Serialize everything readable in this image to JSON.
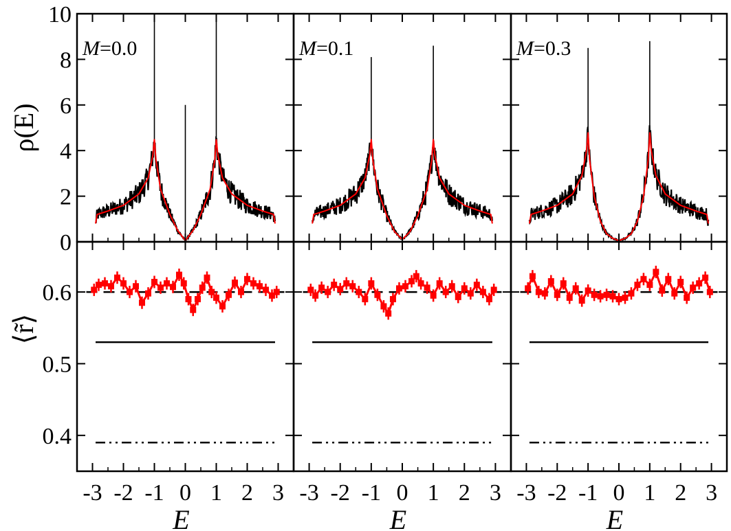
{
  "chart_data": {
    "type": "line",
    "layout": "3 columns x 2 rows of panels sharing axes",
    "colors": {
      "histogram": "#000000",
      "fit": "#ff0000",
      "r_data": "#ff0000",
      "reference_lines": "#000000"
    },
    "x_axis": {
      "label": "E",
      "range": [
        -3.5,
        3.5
      ],
      "ticks": [
        -3,
        -2,
        -1,
        0,
        1,
        2,
        3
      ],
      "tick_labels": [
        "-3",
        "-2",
        "-1",
        "0",
        "1",
        "2",
        "3"
      ]
    },
    "top_row": {
      "ylabel": "ρ(E)",
      "ylim": [
        0,
        10
      ],
      "yticks": [
        0,
        2,
        4,
        6,
        8,
        10
      ],
      "ytick_labels": [
        "0",
        "2",
        "4",
        "6",
        "8",
        "10"
      ]
    },
    "bottom_row": {
      "ylabel": "⟨r̃⟩",
      "ylim": [
        0.35,
        0.67
      ],
      "yticks": [
        0.4,
        0.5,
        0.6
      ],
      "ytick_labels": [
        "0.4",
        "0.5",
        "0.6"
      ],
      "reference_lines": [
        {
          "style": "dashed",
          "y": 0.6,
          "x": [
            -3.2,
            3.2
          ]
        },
        {
          "style": "solid",
          "y": 0.53,
          "x": [
            -2.9,
            2.9
          ]
        },
        {
          "style": "dash-dot-dot",
          "y": 0.39,
          "x": [
            -2.9,
            2.9
          ]
        }
      ]
    },
    "panels": [
      {
        "label_var": "M",
        "label_val": "=0.0",
        "density_peaks": [
          {
            "x": -1.0,
            "y": 10.0
          },
          {
            "x": 0.0,
            "y": 6.0
          },
          {
            "x": 1.0,
            "y": 9.7
          }
        ],
        "density_fit_points": [
          {
            "x": -2.9,
            "y": 0.8
          },
          {
            "x": -2.85,
            "y": 1.2
          },
          {
            "x": -2.5,
            "y": 1.35
          },
          {
            "x": -2.0,
            "y": 1.6
          },
          {
            "x": -1.5,
            "y": 2.1
          },
          {
            "x": -1.2,
            "y": 2.8
          },
          {
            "x": -1.05,
            "y": 3.8
          },
          {
            "x": -1.0,
            "y": 4.5
          },
          {
            "x": -0.95,
            "y": 3.6
          },
          {
            "x": -0.8,
            "y": 2.3
          },
          {
            "x": -0.5,
            "y": 1.2
          },
          {
            "x": -0.25,
            "y": 0.5
          },
          {
            "x": 0.0,
            "y": 0.05
          },
          {
            "x": 0.25,
            "y": 0.5
          },
          {
            "x": 0.5,
            "y": 1.2
          },
          {
            "x": 0.8,
            "y": 2.3
          },
          {
            "x": 0.95,
            "y": 3.6
          },
          {
            "x": 1.0,
            "y": 4.5
          },
          {
            "x": 1.05,
            "y": 3.8
          },
          {
            "x": 1.2,
            "y": 2.8
          },
          {
            "x": 1.5,
            "y": 2.1
          },
          {
            "x": 2.0,
            "y": 1.6
          },
          {
            "x": 2.5,
            "y": 1.35
          },
          {
            "x": 2.85,
            "y": 1.2
          },
          {
            "x": 2.9,
            "y": 0.8
          }
        ],
        "r_points": [
          {
            "x": -2.95,
            "y": 0.603
          },
          {
            "x": -2.8,
            "y": 0.61
          },
          {
            "x": -2.6,
            "y": 0.612
          },
          {
            "x": -2.4,
            "y": 0.608
          },
          {
            "x": -2.2,
            "y": 0.62
          },
          {
            "x": -2.0,
            "y": 0.612
          },
          {
            "x": -1.8,
            "y": 0.6
          },
          {
            "x": -1.6,
            "y": 0.608
          },
          {
            "x": -1.4,
            "y": 0.585
          },
          {
            "x": -1.2,
            "y": 0.598
          },
          {
            "x": -1.0,
            "y": 0.614
          },
          {
            "x": -0.8,
            "y": 0.606
          },
          {
            "x": -0.6,
            "y": 0.612
          },
          {
            "x": -0.4,
            "y": 0.607
          },
          {
            "x": -0.2,
            "y": 0.624
          },
          {
            "x": -0.05,
            "y": 0.612
          },
          {
            "x": 0.1,
            "y": 0.59
          },
          {
            "x": 0.25,
            "y": 0.575
          },
          {
            "x": 0.4,
            "y": 0.59
          },
          {
            "x": 0.55,
            "y": 0.606
          },
          {
            "x": 0.7,
            "y": 0.62
          },
          {
            "x": 0.85,
            "y": 0.6
          },
          {
            "x": 1.0,
            "y": 0.592
          },
          {
            "x": 1.2,
            "y": 0.58
          },
          {
            "x": 1.4,
            "y": 0.596
          },
          {
            "x": 1.6,
            "y": 0.613
          },
          {
            "x": 1.8,
            "y": 0.6
          },
          {
            "x": 2.0,
            "y": 0.618
          },
          {
            "x": 2.2,
            "y": 0.612
          },
          {
            "x": 2.4,
            "y": 0.608
          },
          {
            "x": 2.6,
            "y": 0.603
          },
          {
            "x": 2.8,
            "y": 0.595
          },
          {
            "x": 2.95,
            "y": 0.6
          }
        ]
      },
      {
        "label_var": "M",
        "label_val": "=0.1",
        "density_peaks": [
          {
            "x": -1.0,
            "y": 8.1
          },
          {
            "x": 1.0,
            "y": 8.6
          }
        ],
        "density_fit_points": [
          {
            "x": -2.9,
            "y": 0.8
          },
          {
            "x": -2.85,
            "y": 1.2
          },
          {
            "x": -2.5,
            "y": 1.35
          },
          {
            "x": -2.0,
            "y": 1.6
          },
          {
            "x": -1.5,
            "y": 2.1
          },
          {
            "x": -1.2,
            "y": 2.8
          },
          {
            "x": -1.05,
            "y": 3.8
          },
          {
            "x": -1.0,
            "y": 4.5
          },
          {
            "x": -0.95,
            "y": 3.6
          },
          {
            "x": -0.8,
            "y": 2.3
          },
          {
            "x": -0.5,
            "y": 1.15
          },
          {
            "x": -0.25,
            "y": 0.45
          },
          {
            "x": 0.0,
            "y": 0.1
          },
          {
            "x": 0.25,
            "y": 0.45
          },
          {
            "x": 0.5,
            "y": 1.15
          },
          {
            "x": 0.8,
            "y": 2.3
          },
          {
            "x": 0.95,
            "y": 3.6
          },
          {
            "x": 1.0,
            "y": 4.5
          },
          {
            "x": 1.05,
            "y": 3.8
          },
          {
            "x": 1.2,
            "y": 2.8
          },
          {
            "x": 1.5,
            "y": 2.1
          },
          {
            "x": 2.0,
            "y": 1.6
          },
          {
            "x": 2.5,
            "y": 1.35
          },
          {
            "x": 2.85,
            "y": 1.2
          },
          {
            "x": 2.9,
            "y": 0.8
          }
        ],
        "r_points": [
          {
            "x": -2.95,
            "y": 0.603
          },
          {
            "x": -2.8,
            "y": 0.595
          },
          {
            "x": -2.6,
            "y": 0.606
          },
          {
            "x": -2.4,
            "y": 0.6
          },
          {
            "x": -2.2,
            "y": 0.61
          },
          {
            "x": -2.0,
            "y": 0.604
          },
          {
            "x": -1.8,
            "y": 0.612
          },
          {
            "x": -1.6,
            "y": 0.608
          },
          {
            "x": -1.4,
            "y": 0.6
          },
          {
            "x": -1.2,
            "y": 0.59
          },
          {
            "x": -1.0,
            "y": 0.612
          },
          {
            "x": -0.8,
            "y": 0.596
          },
          {
            "x": -0.6,
            "y": 0.58
          },
          {
            "x": -0.45,
            "y": 0.57
          },
          {
            "x": -0.3,
            "y": 0.59
          },
          {
            "x": -0.1,
            "y": 0.605
          },
          {
            "x": 0.1,
            "y": 0.608
          },
          {
            "x": 0.3,
            "y": 0.615
          },
          {
            "x": 0.45,
            "y": 0.622
          },
          {
            "x": 0.6,
            "y": 0.612
          },
          {
            "x": 0.8,
            "y": 0.606
          },
          {
            "x": 1.0,
            "y": 0.595
          },
          {
            "x": 1.2,
            "y": 0.612
          },
          {
            "x": 1.4,
            "y": 0.6
          },
          {
            "x": 1.6,
            "y": 0.608
          },
          {
            "x": 1.8,
            "y": 0.593
          },
          {
            "x": 2.0,
            "y": 0.605
          },
          {
            "x": 2.2,
            "y": 0.598
          },
          {
            "x": 2.4,
            "y": 0.61
          },
          {
            "x": 2.6,
            "y": 0.6
          },
          {
            "x": 2.8,
            "y": 0.59
          },
          {
            "x": 2.95,
            "y": 0.603
          }
        ]
      },
      {
        "label_var": "M",
        "label_val": "=0.3",
        "density_peaks": [
          {
            "x": -1.0,
            "y": 8.5
          },
          {
            "x": 1.0,
            "y": 8.8
          }
        ],
        "density_fit_points": [
          {
            "x": -2.9,
            "y": 0.8
          },
          {
            "x": -2.85,
            "y": 1.2
          },
          {
            "x": -2.5,
            "y": 1.35
          },
          {
            "x": -2.0,
            "y": 1.6
          },
          {
            "x": -1.5,
            "y": 2.1
          },
          {
            "x": -1.2,
            "y": 2.9
          },
          {
            "x": -1.05,
            "y": 4.0
          },
          {
            "x": -1.0,
            "y": 4.8
          },
          {
            "x": -0.95,
            "y": 3.6
          },
          {
            "x": -0.8,
            "y": 2.0
          },
          {
            "x": -0.6,
            "y": 0.9
          },
          {
            "x": -0.4,
            "y": 0.35
          },
          {
            "x": -0.2,
            "y": 0.15
          },
          {
            "x": 0.0,
            "y": 0.05
          },
          {
            "x": 0.2,
            "y": 0.15
          },
          {
            "x": 0.4,
            "y": 0.35
          },
          {
            "x": 0.6,
            "y": 0.9
          },
          {
            "x": 0.8,
            "y": 2.0
          },
          {
            "x": 0.95,
            "y": 3.6
          },
          {
            "x": 1.0,
            "y": 4.8
          },
          {
            "x": 1.05,
            "y": 4.0
          },
          {
            "x": 1.2,
            "y": 2.9
          },
          {
            "x": 1.5,
            "y": 2.1
          },
          {
            "x": 2.0,
            "y": 1.6
          },
          {
            "x": 2.5,
            "y": 1.35
          },
          {
            "x": 2.85,
            "y": 1.2
          },
          {
            "x": 2.9,
            "y": 0.8
          }
        ],
        "r_points": [
          {
            "x": -2.95,
            "y": 0.605
          },
          {
            "x": -2.8,
            "y": 0.622
          },
          {
            "x": -2.6,
            "y": 0.6
          },
          {
            "x": -2.4,
            "y": 0.598
          },
          {
            "x": -2.2,
            "y": 0.615
          },
          {
            "x": -2.0,
            "y": 0.596
          },
          {
            "x": -1.8,
            "y": 0.612
          },
          {
            "x": -1.6,
            "y": 0.592
          },
          {
            "x": -1.4,
            "y": 0.605
          },
          {
            "x": -1.2,
            "y": 0.588
          },
          {
            "x": -1.0,
            "y": 0.602
          },
          {
            "x": -0.8,
            "y": 0.596
          },
          {
            "x": -0.6,
            "y": 0.594
          },
          {
            "x": -0.4,
            "y": 0.596
          },
          {
            "x": -0.2,
            "y": 0.594
          },
          {
            "x": 0.0,
            "y": 0.59
          },
          {
            "x": 0.2,
            "y": 0.592
          },
          {
            "x": 0.4,
            "y": 0.598
          },
          {
            "x": 0.6,
            "y": 0.61
          },
          {
            "x": 0.8,
            "y": 0.618
          },
          {
            "x": 1.0,
            "y": 0.61
          },
          {
            "x": 1.2,
            "y": 0.628
          },
          {
            "x": 1.4,
            "y": 0.602
          },
          {
            "x": 1.6,
            "y": 0.618
          },
          {
            "x": 1.8,
            "y": 0.598
          },
          {
            "x": 2.0,
            "y": 0.614
          },
          {
            "x": 2.2,
            "y": 0.592
          },
          {
            "x": 2.4,
            "y": 0.606
          },
          {
            "x": 2.6,
            "y": 0.612
          },
          {
            "x": 2.8,
            "y": 0.62
          },
          {
            "x": 2.95,
            "y": 0.6
          }
        ]
      }
    ]
  }
}
